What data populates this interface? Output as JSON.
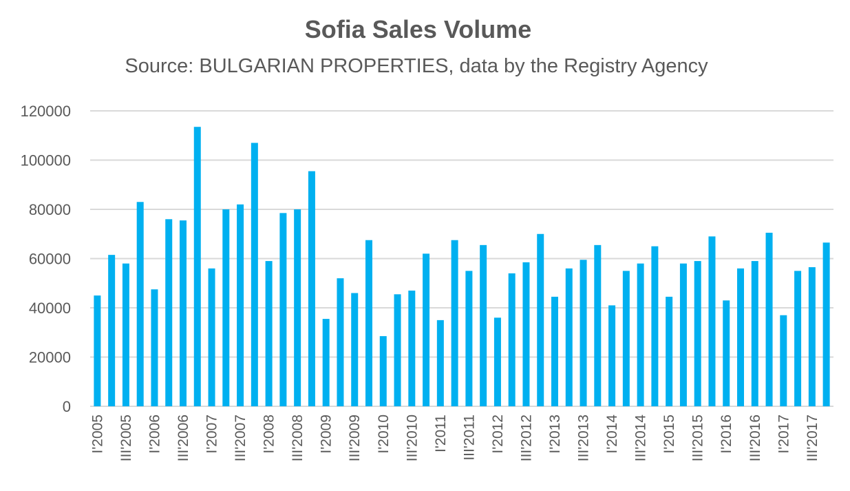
{
  "chart_data": {
    "type": "bar",
    "title": "Sofia Sales Volume",
    "subtitle": "Source: BULGARIAN PROPERTIES, data by the Registry Agency",
    "xlabel": "",
    "ylabel": "",
    "ylim": [
      0,
      120000
    ],
    "yticks": [
      0,
      20000,
      40000,
      60000,
      80000,
      100000,
      120000
    ],
    "grid": true,
    "legend": "none",
    "color": "#00B0F0",
    "categories": [
      "I'2005",
      "II'2005",
      "III'2005",
      "IV'2005",
      "I'2006",
      "II'2006",
      "III'2006",
      "IV'2006",
      "I'2007",
      "II'2007",
      "III'2007",
      "IV'2007",
      "I'2008",
      "II'2008",
      "III'2008",
      "IV'2008",
      "I'2009",
      "II'2009",
      "III'2009",
      "IV'2009",
      "I'2010",
      "II'2010",
      "III'2010",
      "IV'2010",
      "I'2011",
      "II'2011",
      "III'2011",
      "IV'2011",
      "I'2012",
      "II'2012",
      "III'2012",
      "IV'2012",
      "I'2013",
      "II'2013",
      "III'2013",
      "IV'2013",
      "I'2014",
      "II'2014",
      "III'2014",
      "IV'2014",
      "I'2015",
      "II'2015",
      "III'2015",
      "IV'2015",
      "I'2016",
      "II'2016",
      "III'2016",
      "IV'2016",
      "I'2017",
      "II'2017",
      "III'2017",
      "IV'2017"
    ],
    "shown_tick_labels": [
      "I'2005",
      "III'2005",
      "I'2006",
      "III'2006",
      "I'2007",
      "III'2007",
      "I'2008",
      "III'2008",
      "I'2009",
      "III'2009",
      "I'2010",
      "III'2010",
      "I'2011",
      "III'2011",
      "I'2012",
      "III'2012",
      "I'2013",
      "III'2013",
      "I'2014",
      "III'2014",
      "I'2015",
      "III'2015",
      "I'2016",
      "III'2016",
      "I'2017",
      "III'2017"
    ],
    "values": [
      45000,
      61500,
      58000,
      83000,
      47500,
      76000,
      75500,
      113500,
      56000,
      80000,
      82000,
      107000,
      59000,
      78500,
      80000,
      95500,
      35500,
      52000,
      46000,
      67500,
      28500,
      45500,
      47000,
      62000,
      35000,
      67500,
      55000,
      65500,
      36000,
      54000,
      58500,
      70000,
      44500,
      56000,
      59500,
      65500,
      41000,
      55000,
      58000,
      65000,
      44500,
      58000,
      59000,
      69000,
      43000,
      56000,
      59000,
      70500,
      37000,
      55000,
      56500,
      66500
    ]
  }
}
